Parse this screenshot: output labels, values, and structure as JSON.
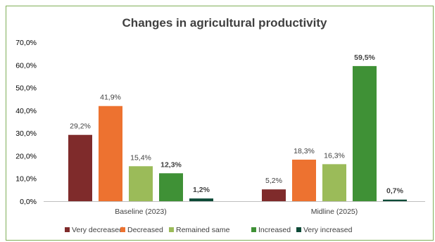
{
  "chart_data": {
    "type": "bar",
    "title": "Changes in agricultural productivity",
    "categories": [
      "Baseline (2023)",
      "Midline (2025)"
    ],
    "yticks": [
      "0,0%",
      "10,0%",
      "20,0%",
      "30,0%",
      "40,0%",
      "50,0%",
      "60,0%",
      "70,0%"
    ],
    "ylim": [
      0,
      70
    ],
    "grid": false,
    "legend_position": "bottom",
    "series": [
      {
        "name": "Very decreased",
        "color": "#7f2b2b",
        "values": [
          29.2,
          5.2
        ],
        "labels": [
          "29,2%",
          "5,2%"
        ]
      },
      {
        "name": "Decreased",
        "color": "#ed7230",
        "values": [
          41.9,
          18.3
        ],
        "labels": [
          "41,9%",
          "18,3%"
        ]
      },
      {
        "name": "Remained same",
        "color": "#9bbb59",
        "values": [
          15.4,
          16.3
        ],
        "labels": [
          "15,4%",
          "16,3%"
        ]
      },
      {
        "name": "Increased",
        "color": "#3f9136",
        "values": [
          12.3,
          59.5
        ],
        "labels": [
          "12,3%",
          "59,5%"
        ]
      },
      {
        "name": "Very increased",
        "color": "#0d4a37",
        "values": [
          1.2,
          0.7
        ],
        "labels": [
          "1,2%",
          "0,7%"
        ]
      }
    ]
  }
}
